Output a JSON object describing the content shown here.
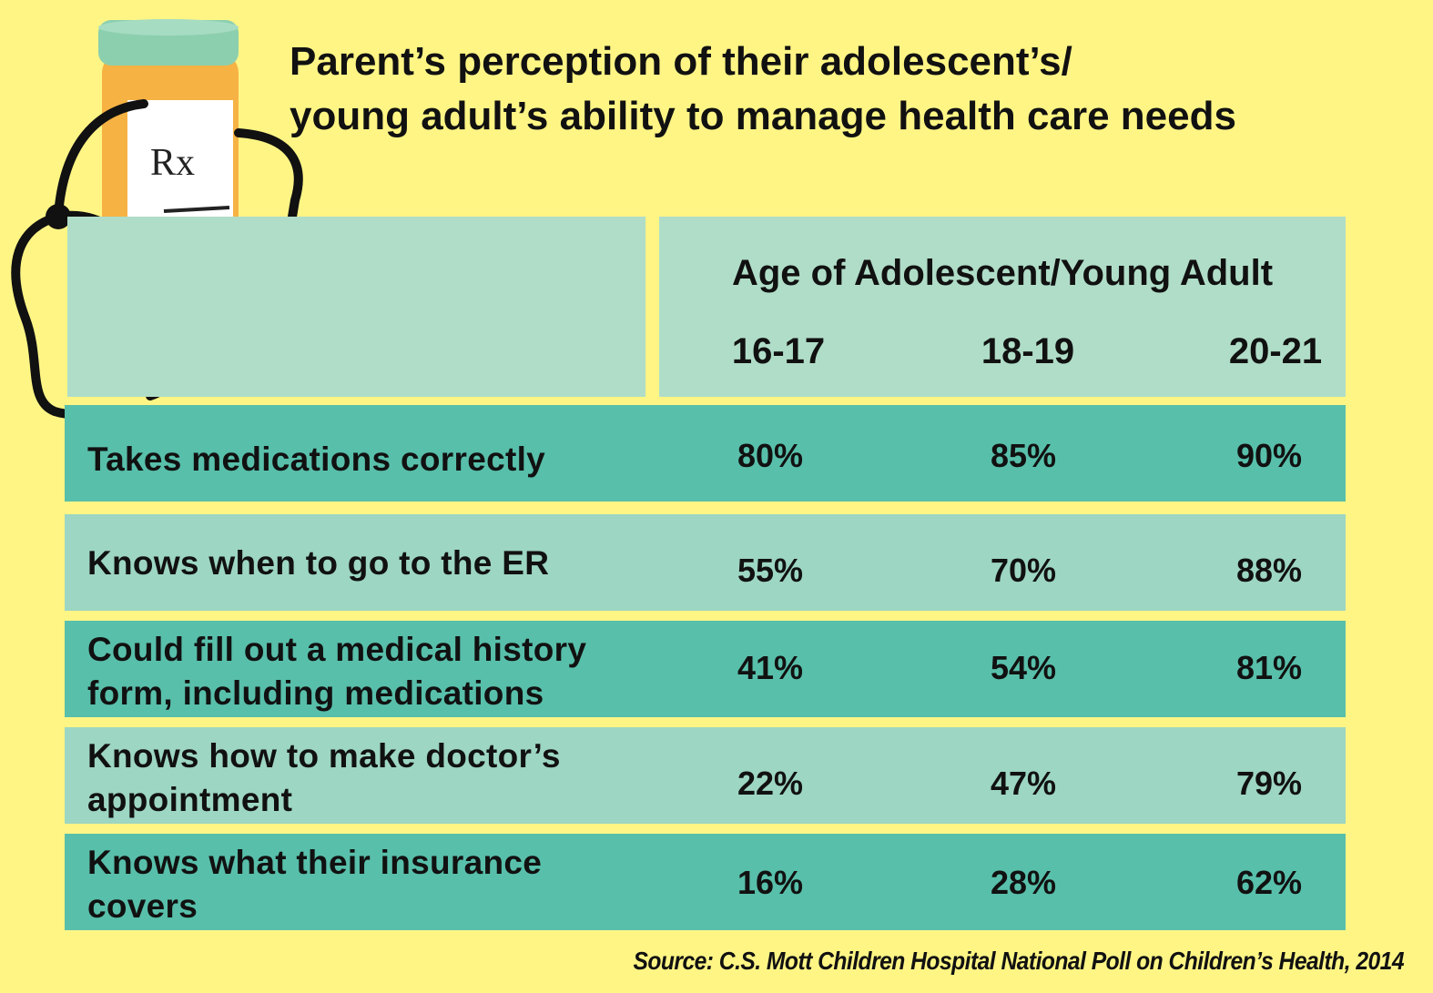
{
  "title_lines": [
    "Parent’s perception of their adolescent’s/",
    "young adult’s ability to manage health care needs"
  ],
  "header": {
    "group_label": "Age of Adolescent/Young Adult"
  },
  "illustration": {
    "icons": [
      "pill-bottle-icon",
      "stethoscope-icon"
    ],
    "rx_text": "Rx"
  },
  "colors": {
    "background": "#fff585",
    "header": "#b0ddc8",
    "row_dark": "#58bfaa",
    "row_light": "#9dd6c2",
    "bottle": "#f6b243",
    "cap": "#8ccfae"
  },
  "chart_data": {
    "type": "table",
    "title": "Parent’s perception of their adolescent’s/ young adult’s ability to manage health care needs",
    "column_group": "Age of Adolescent/Young Adult",
    "columns": [
      "16-17",
      "18-19",
      "20-21"
    ],
    "rows": [
      {
        "label_lines": [
          "Takes medications correctly"
        ],
        "values": [
          "80%",
          "85%",
          "90%"
        ]
      },
      {
        "label_lines": [
          "Knows when to go to the ER"
        ],
        "values": [
          "55%",
          "70%",
          "88%"
        ]
      },
      {
        "label_lines": [
          "Could fill out a medical history",
          "form, including medications"
        ],
        "values": [
          "41%",
          "54%",
          "81%"
        ]
      },
      {
        "label_lines": [
          "Knows how to make doctor’s",
          "appointment"
        ],
        "values": [
          "22%",
          "47%",
          "79%"
        ]
      },
      {
        "label_lines": [
          "Knows what their insurance",
          "covers"
        ],
        "values": [
          "16%",
          "28%",
          "62%"
        ]
      }
    ],
    "source": "Source: C.S. Mott Children Hospital National Poll on Children’s Health, 2014"
  }
}
